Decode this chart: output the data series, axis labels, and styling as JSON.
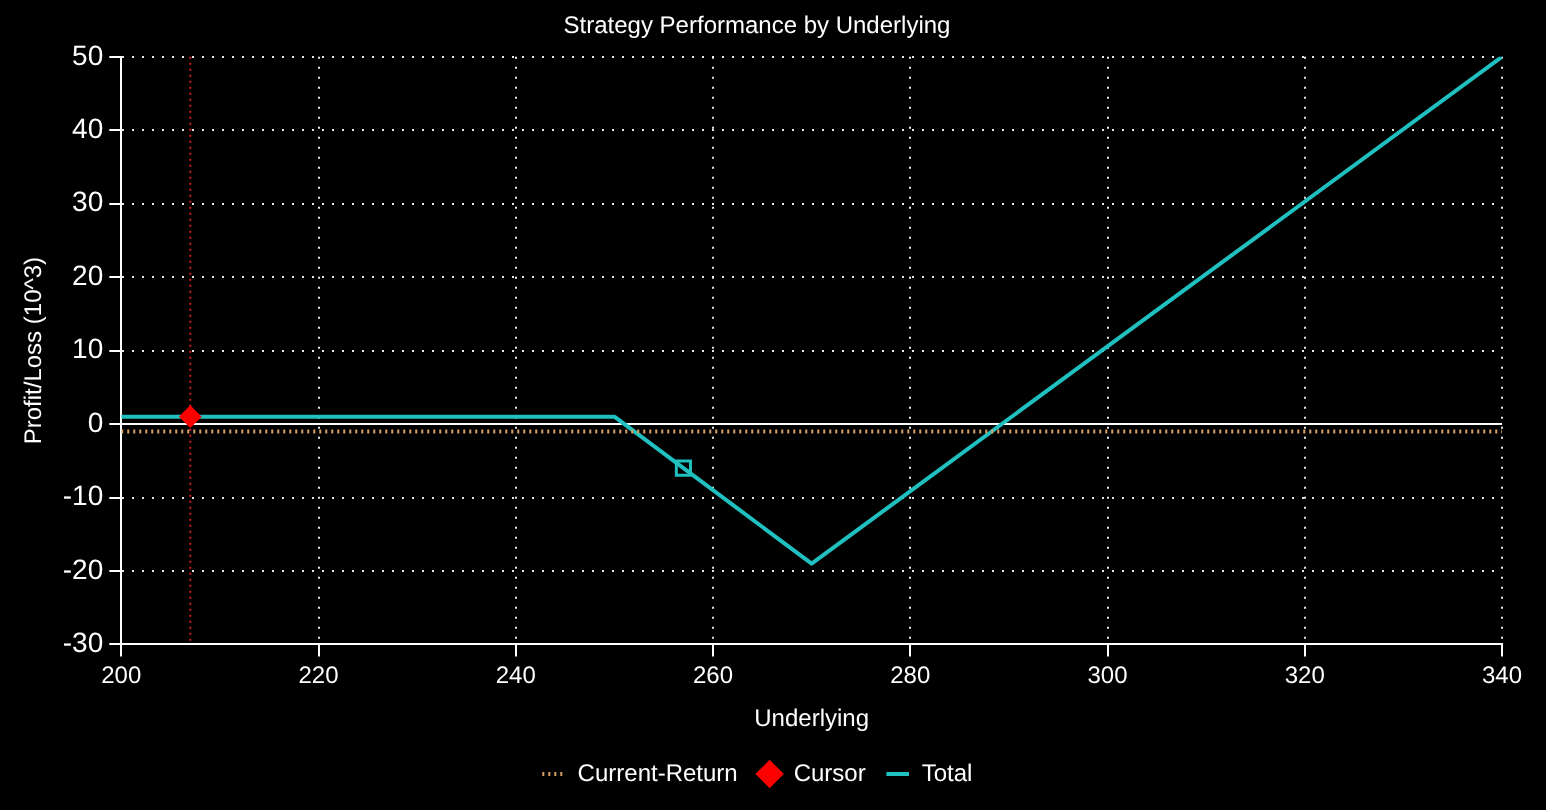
{
  "chart_data": {
    "type": "line",
    "title": "Strategy Performance by Underlying",
    "xlabel": "Underlying",
    "ylabel": "Profit/Loss (10^3)",
    "xlim": [
      200,
      340
    ],
    "xticks": [
      200,
      220,
      240,
      260,
      280,
      300,
      320,
      340
    ],
    "ylim": [
      -30,
      50
    ],
    "yticks": [
      -30,
      -20,
      -10,
      0,
      10,
      20,
      30,
      40,
      50
    ],
    "grid": true,
    "legend": "bottom",
    "series": [
      {
        "name": "Current-Return",
        "color": "#d9a066",
        "line_style": "dotted",
        "marker": "none",
        "x": [
          200,
          340
        ],
        "values": [
          -1,
          -1
        ]
      },
      {
        "name": "Cursor",
        "type": "scatter",
        "color": "#ff0000",
        "marker": "diamond",
        "x": [
          207
        ],
        "values": [
          1
        ]
      },
      {
        "name": "Total",
        "color": "#20c0c0",
        "line_style": "solid",
        "marker": "none",
        "x": [
          200,
          250,
          270,
          340
        ],
        "values": [
          1,
          1,
          -19,
          50
        ]
      },
      {
        "type": "scatter",
        "color": "#20c0c0",
        "marker": "square",
        "x": [
          257
        ],
        "values": [
          -6
        ]
      }
    ],
    "ref_lines": [
      {
        "axis": "x",
        "value": 207,
        "color": "#cc2020",
        "line_style": "dotted"
      },
      {
        "axis": "y",
        "value": 0,
        "color": "#ffffff",
        "line_style": "solid"
      }
    ]
  }
}
